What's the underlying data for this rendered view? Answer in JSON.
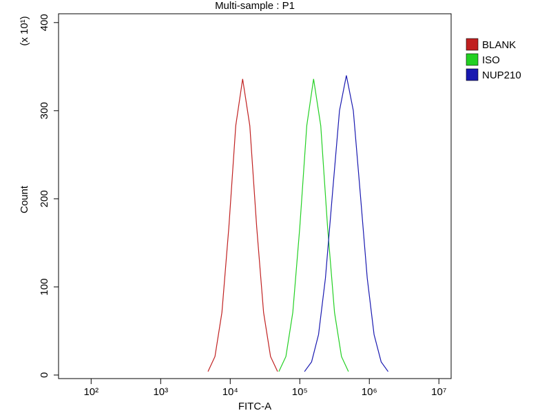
{
  "chart_data": {
    "type": "line",
    "title": "Multi-sample : P1",
    "x_label": "FITC-A",
    "y_label": "Count",
    "y_multiplier": "(x 10¹)",
    "x_scale": "log",
    "legend": "right",
    "xlim": [
      34,
      15000000
    ],
    "xticks": [
      {
        "value": 100,
        "label": "10²"
      },
      {
        "value": 1000,
        "label": "10³"
      },
      {
        "value": 10000,
        "label": "10⁴"
      },
      {
        "value": 100000,
        "label": "10⁵"
      },
      {
        "value": 1000000,
        "label": "10⁶"
      },
      {
        "value": 10000000,
        "label": "10⁷"
      }
    ],
    "ylim": [
      -4,
      410
    ],
    "yticks": [
      0,
      100,
      200,
      300,
      400
    ],
    "series": [
      {
        "name": "BLANK",
        "color": "#c02020",
        "x": [
          4790,
          6030,
          7590,
          9550,
          12000,
          15100,
          19100,
          24000,
          30200,
          38000,
          47900
        ],
        "values": [
          4,
          21,
          71,
          168,
          283,
          336,
          283,
          168,
          71,
          21,
          4
        ]
      },
      {
        "name": "ISO",
        "color": "#22d022",
        "x": [
          50100,
          63100,
          79400,
          100000,
          126000,
          158000,
          200000,
          251000,
          316000,
          398000,
          501000
        ],
        "values": [
          4,
          21,
          71,
          168,
          283,
          336,
          283,
          168,
          71,
          21,
          4
        ]
      },
      {
        "name": "NUP210",
        "color": "#1818b0",
        "x": [
          117000,
          148000,
          186000,
          234000,
          295000,
          372000,
          468000,
          589000,
          741000,
          933000,
          1170000,
          1480000,
          1860000
        ],
        "values": [
          4,
          15,
          46,
          110,
          206,
          300,
          340,
          300,
          206,
          110,
          46,
          15,
          4
        ]
      }
    ]
  }
}
